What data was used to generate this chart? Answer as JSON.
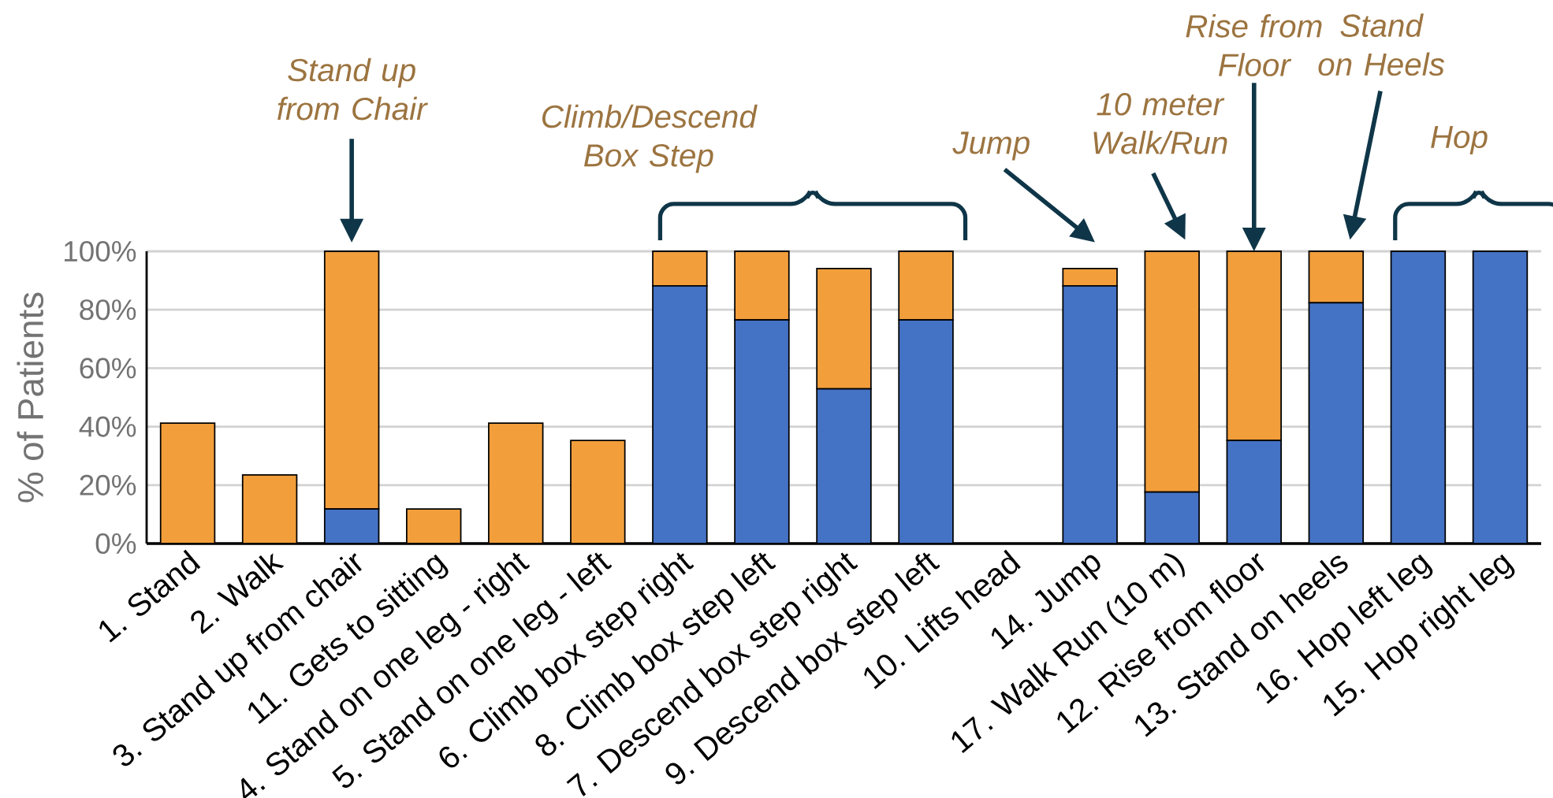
{
  "chart_data": {
    "type": "bar",
    "stacked": true,
    "ylabel": "% of Patients",
    "categories": [
      "1. Stand",
      "2. Walk",
      "3. Stand up from chair",
      "11. Gets to sitting",
      "4. Stand on one leg - right",
      "5. Stand on one leg - left",
      "6. Climb box step right",
      "8. Climb box step left",
      "7. Descend box step right",
      "9. Descend box step left",
      "10. Lifts head",
      "14. Jump",
      "17. Walk Run (10 m)",
      "12. Rise from floor",
      "13. Stand on heels",
      "16. Hop left leg",
      "15. Hop right leg"
    ],
    "series": [
      {
        "color": "#4472c4",
        "values": [
          0,
          0,
          11.8,
          0,
          0,
          0,
          88.2,
          76.5,
          52.9,
          76.5,
          0,
          88.2,
          17.6,
          35.3,
          82.4,
          100,
          100
        ]
      },
      {
        "color": "#f19e3b",
        "values": [
          41.2,
          23.5,
          88.2,
          11.8,
          41.2,
          35.3,
          11.8,
          23.5,
          41.2,
          23.5,
          0,
          5.9,
          82.4,
          64.7,
          17.6,
          0,
          0
        ]
      }
    ],
    "ylim": [
      0,
      100
    ],
    "yticks": [
      {
        "value": 0,
        "label": "0%"
      },
      {
        "value": 20,
        "label": "20%"
      },
      {
        "value": 40,
        "label": "40%"
      },
      {
        "value": 60,
        "label": "60%"
      },
      {
        "value": 80,
        "label": "80%"
      },
      {
        "value": 100,
        "label": "100%"
      }
    ],
    "grid": "y",
    "annotations": [
      "Stand up from Chair",
      "Climb/Descend Box Step",
      "Jump",
      "10 meter Walk/Run",
      "Rise from Floor",
      "Stand on Heels",
      "Hop"
    ]
  }
}
